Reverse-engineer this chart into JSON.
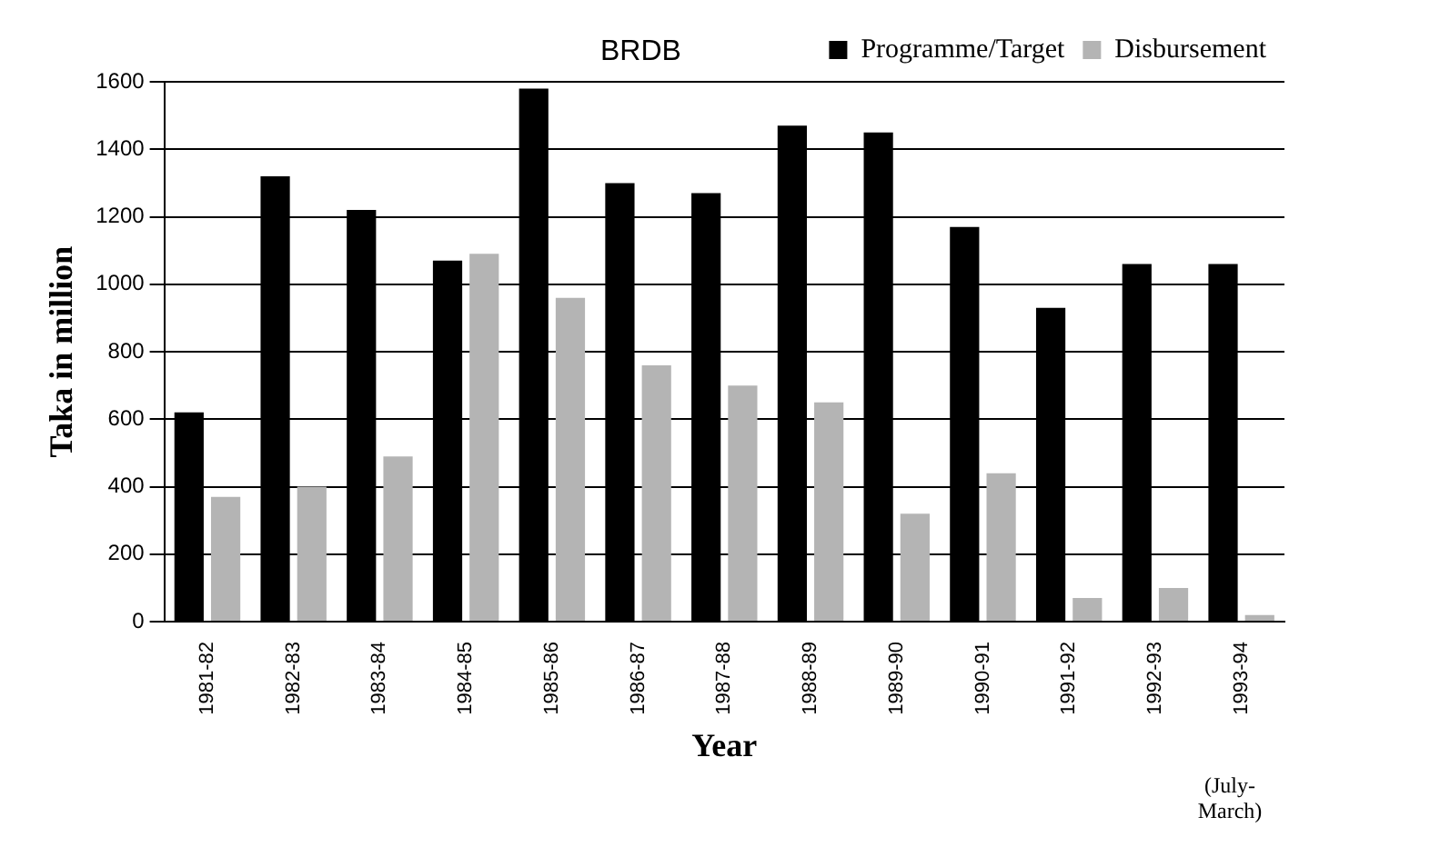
{
  "chart_data": {
    "type": "bar",
    "title": "BRDB",
    "xlabel": "Year",
    "ylabel": "Taka in million",
    "categories": [
      "1981-82",
      "1982-83",
      "1983-84",
      "1984-85",
      "1985-86",
      "1986-87",
      "1987-88",
      "1988-89",
      "1989-90",
      "1990-91",
      "1991-92",
      "1992-93",
      "1993-94"
    ],
    "series": [
      {
        "name": "Programme/Target",
        "color": "#000000",
        "values": [
          620,
          1320,
          1220,
          1070,
          1580,
          1300,
          1270,
          1470,
          1450,
          1170,
          930,
          1060,
          1060
        ]
      },
      {
        "name": "Disbursement",
        "color": "#b4b4b4",
        "values": [
          370,
          400,
          490,
          1090,
          960,
          760,
          700,
          650,
          320,
          440,
          70,
          100,
          20
        ]
      }
    ],
    "ylim": [
      0,
      1600
    ],
    "yticks": [
      0,
      200,
      400,
      600,
      800,
      1000,
      1200,
      1400,
      1600
    ],
    "grid": "y",
    "legend": "top right",
    "annotations": [
      "(July-March)"
    ]
  }
}
